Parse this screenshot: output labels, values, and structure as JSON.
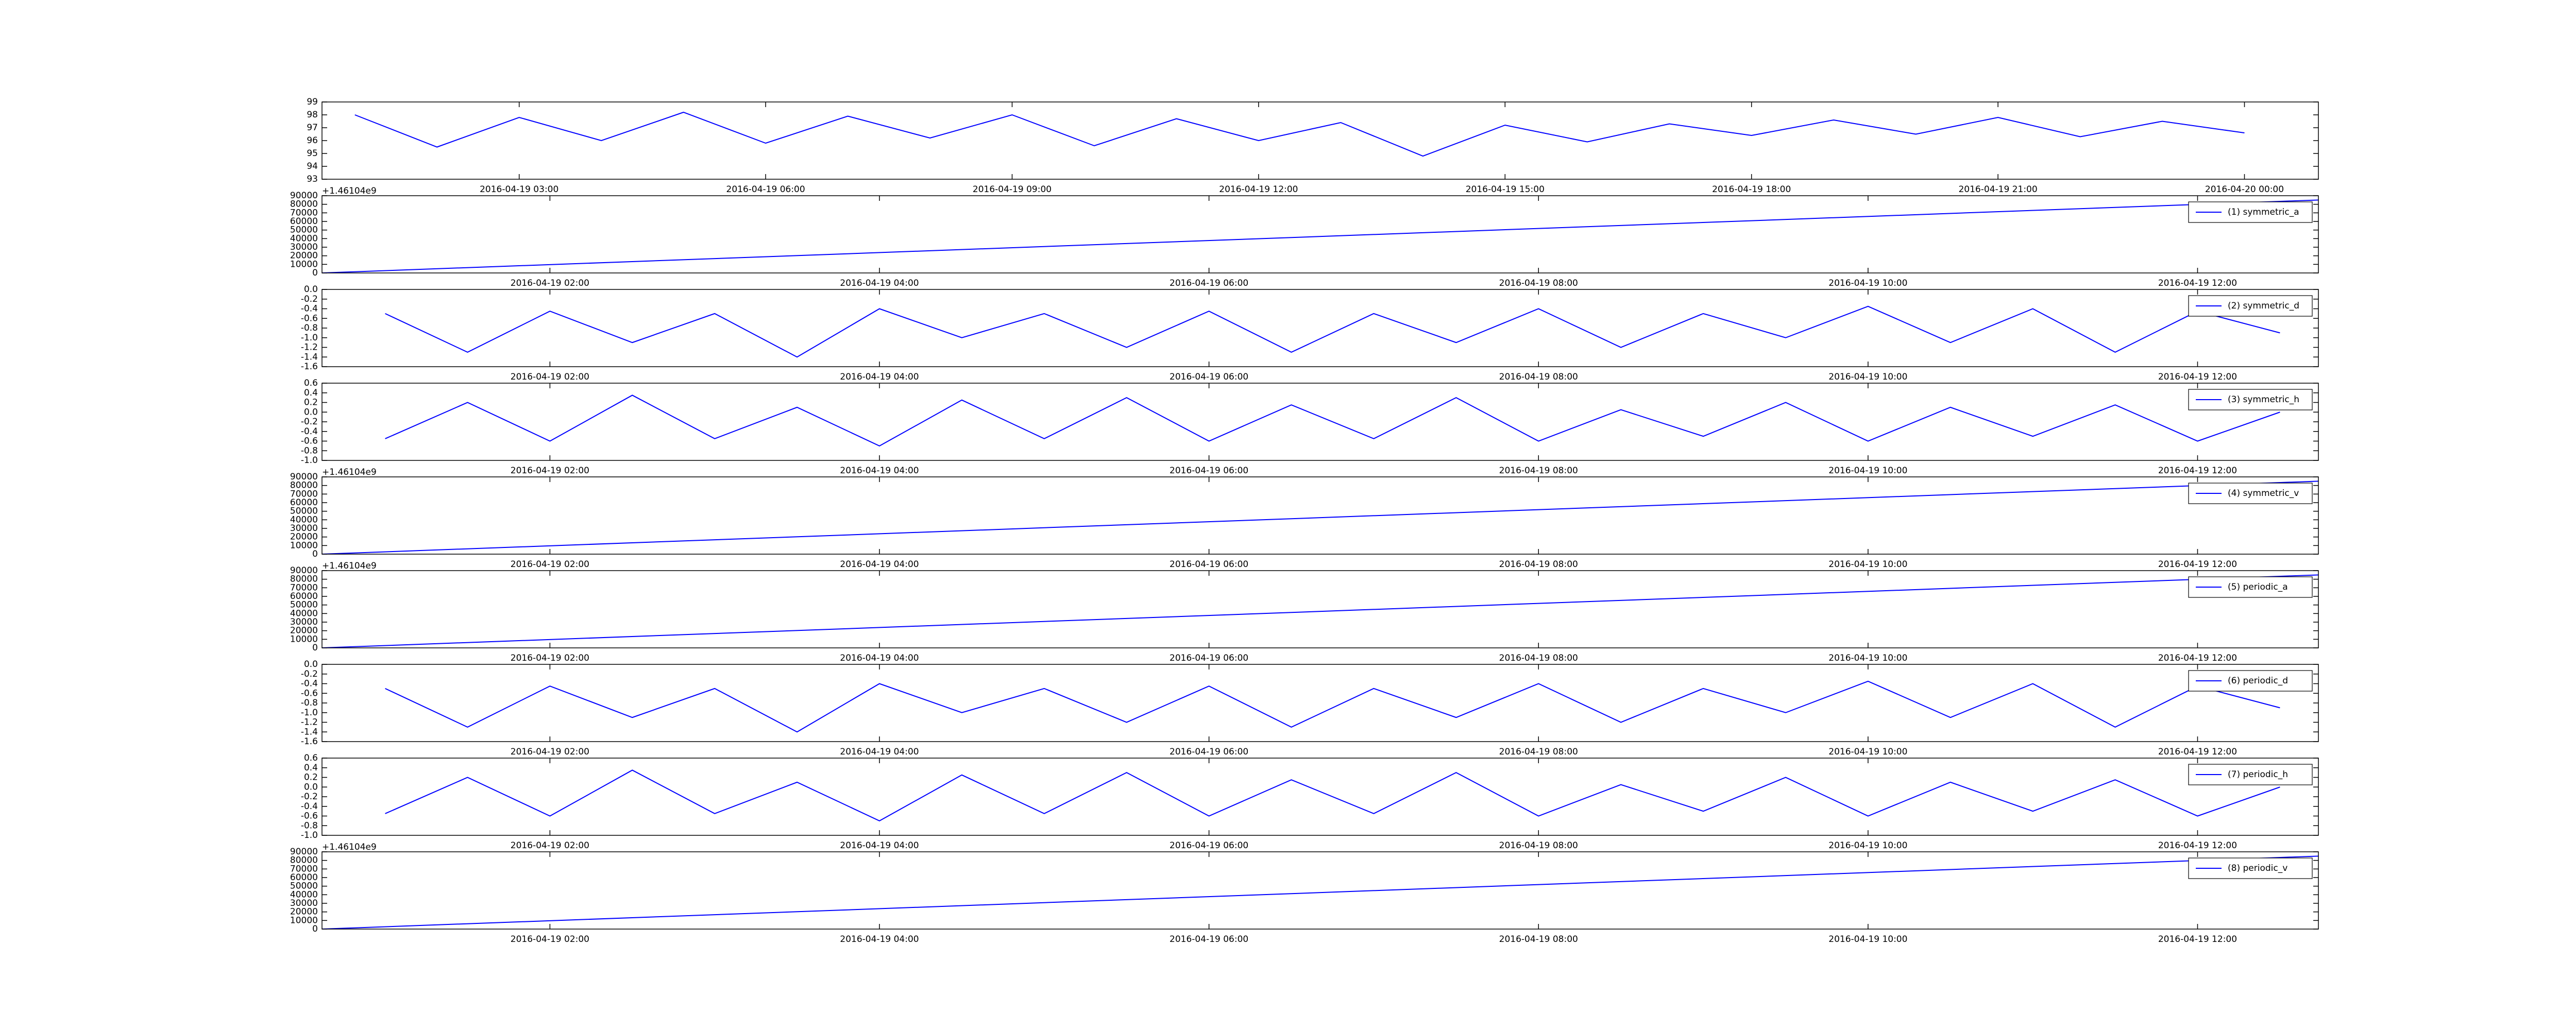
{
  "chart_data": [
    {
      "type": "line",
      "x": [
        "2016-04-19 01:00",
        "2016-04-19 02:00",
        "2016-04-19 03:00",
        "2016-04-19 04:00",
        "2016-04-19 05:00",
        "2016-04-19 06:00",
        "2016-04-19 07:00",
        "2016-04-19 08:00",
        "2016-04-19 09:00",
        "2016-04-19 10:00",
        "2016-04-19 11:00",
        "2016-04-19 12:00",
        "2016-04-19 13:00",
        "2016-04-19 14:00",
        "2016-04-19 15:00",
        "2016-04-19 16:00",
        "2016-04-19 17:00",
        "2016-04-19 18:00",
        "2016-04-19 19:00",
        "2016-04-19 20:00",
        "2016-04-19 21:00",
        "2016-04-19 22:00",
        "2016-04-19 23:00",
        "2016-04-20 00:00"
      ],
      "series": [
        {
          "color": "#0000ff",
          "values": [
            98,
            95.5,
            97.8,
            96,
            98.2,
            95.8,
            97.9,
            96.2,
            98,
            95.6,
            97.7,
            96,
            97.4,
            94.8,
            97.2,
            95.9,
            97.3,
            96.4,
            97.6,
            96.5,
            97.8,
            96.3,
            97.5,
            96.6
          ]
        }
      ],
      "xlim": [
        "2016-04-19 00:36",
        "2016-04-20 00:54"
      ],
      "xticks": [
        "2016-04-19 03:00",
        "2016-04-19 06:00",
        "2016-04-19 09:00",
        "2016-04-19 12:00",
        "2016-04-19 15:00",
        "2016-04-19 18:00",
        "2016-04-19 21:00",
        "2016-04-20 00:00"
      ],
      "ylim": [
        93,
        99
      ],
      "yticks": [
        93,
        94,
        95,
        96,
        97,
        98,
        99
      ]
    },
    {
      "type": "line",
      "annotation": "+1.46104e9",
      "legend": "upper right",
      "x": [
        "2016-04-19 00:37",
        "2016-04-19 12:44"
      ],
      "series": [
        {
          "name": "(1) symmetric_a",
          "color": "#0000ff",
          "values": [
            0,
            85000
          ]
        }
      ],
      "xlim": [
        "2016-04-19 00:37",
        "2016-04-19 12:44"
      ],
      "xticks": [
        "2016-04-19 02:00",
        "2016-04-19 04:00",
        "2016-04-19 06:00",
        "2016-04-19 08:00",
        "2016-04-19 10:00",
        "2016-04-19 12:00"
      ],
      "ylim": [
        0,
        90000
      ],
      "yticks": [
        0,
        10000,
        20000,
        30000,
        40000,
        50000,
        60000,
        70000,
        80000,
        90000
      ]
    },
    {
      "type": "line",
      "legend": "upper right",
      "x": [
        "2016-04-19 01:00",
        "2016-04-19 01:30",
        "2016-04-19 02:00",
        "2016-04-19 02:30",
        "2016-04-19 03:00",
        "2016-04-19 03:30",
        "2016-04-19 04:00",
        "2016-04-19 04:30",
        "2016-04-19 05:00",
        "2016-04-19 05:30",
        "2016-04-19 06:00",
        "2016-04-19 06:30",
        "2016-04-19 07:00",
        "2016-04-19 07:30",
        "2016-04-19 08:00",
        "2016-04-19 08:30",
        "2016-04-19 09:00",
        "2016-04-19 09:30",
        "2016-04-19 10:00",
        "2016-04-19 10:30",
        "2016-04-19 11:00",
        "2016-04-19 11:30",
        "2016-04-19 12:00",
        "2016-04-19 12:30"
      ],
      "series": [
        {
          "name": "(2) symmetric_d",
          "color": "#0000ff",
          "values": [
            -0.5,
            -1.3,
            -0.45,
            -1.1,
            -0.5,
            -1.4,
            -0.4,
            -1.0,
            -0.5,
            -1.2,
            -0.45,
            -1.3,
            -0.5,
            -1.1,
            -0.4,
            -1.2,
            -0.5,
            -1.0,
            -0.35,
            -1.1,
            -0.4,
            -1.3,
            -0.45,
            -0.9
          ]
        }
      ],
      "xlim": [
        "2016-04-19 00:37",
        "2016-04-19 12:44"
      ],
      "xticks": [
        "2016-04-19 02:00",
        "2016-04-19 04:00",
        "2016-04-19 06:00",
        "2016-04-19 08:00",
        "2016-04-19 10:00",
        "2016-04-19 12:00"
      ],
      "ylim": [
        -1.6,
        0
      ],
      "yticks": [
        -1.6,
        -1.4,
        -1.2,
        {
          "value": -1,
          "label": "-1.0"
        },
        -0.8,
        -0.6,
        -0.4,
        -0.2,
        {
          "value": 0,
          "label": "0.0"
        }
      ]
    },
    {
      "type": "line",
      "legend": "upper right",
      "x": [
        "2016-04-19 01:00",
        "2016-04-19 01:30",
        "2016-04-19 02:00",
        "2016-04-19 02:30",
        "2016-04-19 03:00",
        "2016-04-19 03:30",
        "2016-04-19 04:00",
        "2016-04-19 04:30",
        "2016-04-19 05:00",
        "2016-04-19 05:30",
        "2016-04-19 06:00",
        "2016-04-19 06:30",
        "2016-04-19 07:00",
        "2016-04-19 07:30",
        "2016-04-19 08:00",
        "2016-04-19 08:30",
        "2016-04-19 09:00",
        "2016-04-19 09:30",
        "2016-04-19 10:00",
        "2016-04-19 10:30",
        "2016-04-19 11:00",
        "2016-04-19 11:30",
        "2016-04-19 12:00",
        "2016-04-19 12:30"
      ],
      "series": [
        {
          "name": "(3) symmetric_h",
          "color": "#0000ff",
          "values": [
            -0.55,
            0.2,
            -0.6,
            0.35,
            -0.55,
            0.1,
            -0.7,
            0.25,
            -0.55,
            0.3,
            -0.6,
            0.15,
            -0.55,
            0.3,
            -0.6,
            0.05,
            -0.5,
            0.2,
            -0.6,
            0.1,
            -0.5,
            0.15,
            -0.6,
            0
          ]
        }
      ],
      "xlim": [
        "2016-04-19 00:37",
        "2016-04-19 12:44"
      ],
      "xticks": [
        "2016-04-19 02:00",
        "2016-04-19 04:00",
        "2016-04-19 06:00",
        "2016-04-19 08:00",
        "2016-04-19 10:00",
        "2016-04-19 12:00"
      ],
      "ylim": [
        -1,
        0.6
      ],
      "yticks": [
        {
          "value": -1,
          "label": "-1.0"
        },
        -0.8,
        -0.6,
        -0.4,
        -0.2,
        {
          "value": 0,
          "label": "0.0"
        },
        0.2,
        0.4,
        0.6
      ]
    },
    {
      "type": "line",
      "annotation": "+1.46104e9",
      "legend": "upper right",
      "x": [
        "2016-04-19 00:37",
        "2016-04-19 12:44"
      ],
      "series": [
        {
          "name": "(4) symmetric_v",
          "color": "#0000ff",
          "values": [
            0,
            85000
          ]
        }
      ],
      "xlim": [
        "2016-04-19 00:37",
        "2016-04-19 12:44"
      ],
      "xticks": [
        "2016-04-19 02:00",
        "2016-04-19 04:00",
        "2016-04-19 06:00",
        "2016-04-19 08:00",
        "2016-04-19 10:00",
        "2016-04-19 12:00"
      ],
      "ylim": [
        0,
        90000
      ],
      "yticks": [
        0,
        10000,
        20000,
        30000,
        40000,
        50000,
        60000,
        70000,
        80000,
        90000
      ]
    },
    {
      "type": "line",
      "annotation": "+1.46104e9",
      "legend": "upper right",
      "x": [
        "2016-04-19 00:37",
        "2016-04-19 12:44"
      ],
      "series": [
        {
          "name": "(5) periodic_a",
          "color": "#0000ff",
          "values": [
            0,
            85000
          ]
        }
      ],
      "xlim": [
        "2016-04-19 00:37",
        "2016-04-19 12:44"
      ],
      "xticks": [
        "2016-04-19 02:00",
        "2016-04-19 04:00",
        "2016-04-19 06:00",
        "2016-04-19 08:00",
        "2016-04-19 10:00",
        "2016-04-19 12:00"
      ],
      "ylim": [
        0,
        90000
      ],
      "yticks": [
        0,
        10000,
        20000,
        30000,
        40000,
        50000,
        60000,
        70000,
        80000,
        90000
      ]
    },
    {
      "type": "line",
      "legend": "upper right",
      "x": [
        "2016-04-19 01:00",
        "2016-04-19 01:30",
        "2016-04-19 02:00",
        "2016-04-19 02:30",
        "2016-04-19 03:00",
        "2016-04-19 03:30",
        "2016-04-19 04:00",
        "2016-04-19 04:30",
        "2016-04-19 05:00",
        "2016-04-19 05:30",
        "2016-04-19 06:00",
        "2016-04-19 06:30",
        "2016-04-19 07:00",
        "2016-04-19 07:30",
        "2016-04-19 08:00",
        "2016-04-19 08:30",
        "2016-04-19 09:00",
        "2016-04-19 09:30",
        "2016-04-19 10:00",
        "2016-04-19 10:30",
        "2016-04-19 11:00",
        "2016-04-19 11:30",
        "2016-04-19 12:00",
        "2016-04-19 12:30"
      ],
      "series": [
        {
          "name": "(6) periodic_d",
          "color": "#0000ff",
          "values": [
            -0.5,
            -1.3,
            -0.45,
            -1.1,
            -0.5,
            -1.4,
            -0.4,
            -1.0,
            -0.5,
            -1.2,
            -0.45,
            -1.3,
            -0.5,
            -1.1,
            -0.4,
            -1.2,
            -0.5,
            -1.0,
            -0.35,
            -1.1,
            -0.4,
            -1.3,
            -0.45,
            -0.9
          ]
        }
      ],
      "xlim": [
        "2016-04-19 00:37",
        "2016-04-19 12:44"
      ],
      "xticks": [
        "2016-04-19 02:00",
        "2016-04-19 04:00",
        "2016-04-19 06:00",
        "2016-04-19 08:00",
        "2016-04-19 10:00",
        "2016-04-19 12:00"
      ],
      "ylim": [
        -1.6,
        0
      ],
      "yticks": [
        -1.6,
        -1.4,
        -1.2,
        {
          "value": -1,
          "label": "-1.0"
        },
        -0.8,
        -0.6,
        -0.4,
        -0.2,
        {
          "value": 0,
          "label": "0.0"
        }
      ]
    },
    {
      "type": "line",
      "legend": "upper right",
      "x": [
        "2016-04-19 01:00",
        "2016-04-19 01:30",
        "2016-04-19 02:00",
        "2016-04-19 02:30",
        "2016-04-19 03:00",
        "2016-04-19 03:30",
        "2016-04-19 04:00",
        "2016-04-19 04:30",
        "2016-04-19 05:00",
        "2016-04-19 05:30",
        "2016-04-19 06:00",
        "2016-04-19 06:30",
        "2016-04-19 07:00",
        "2016-04-19 07:30",
        "2016-04-19 08:00",
        "2016-04-19 08:30",
        "2016-04-19 09:00",
        "2016-04-19 09:30",
        "2016-04-19 10:00",
        "2016-04-19 10:30",
        "2016-04-19 11:00",
        "2016-04-19 11:30",
        "2016-04-19 12:00",
        "2016-04-19 12:30"
      ],
      "series": [
        {
          "name": "(7) periodic_h",
          "color": "#0000ff",
          "values": [
            -0.55,
            0.2,
            -0.6,
            0.35,
            -0.55,
            0.1,
            -0.7,
            0.25,
            -0.55,
            0.3,
            -0.6,
            0.15,
            -0.55,
            0.3,
            -0.6,
            0.05,
            -0.5,
            0.2,
            -0.6,
            0.1,
            -0.5,
            0.15,
            -0.6,
            0
          ]
        }
      ],
      "xlim": [
        "2016-04-19 00:37",
        "2016-04-19 12:44"
      ],
      "xticks": [
        "2016-04-19 02:00",
        "2016-04-19 04:00",
        "2016-04-19 06:00",
        "2016-04-19 08:00",
        "2016-04-19 10:00",
        "2016-04-19 12:00"
      ],
      "ylim": [
        -1,
        0.6
      ],
      "yticks": [
        {
          "value": -1,
          "label": "-1.0"
        },
        -0.8,
        -0.6,
        -0.4,
        -0.2,
        {
          "value": 0,
          "label": "0.0"
        },
        0.2,
        0.4,
        0.6
      ]
    },
    {
      "type": "line",
      "annotation": "+1.46104e9",
      "legend": "upper right",
      "x": [
        "2016-04-19 00:37",
        "2016-04-19 12:44"
      ],
      "series": [
        {
          "name": "(8) periodic_v",
          "color": "#0000ff",
          "values": [
            0,
            85000
          ]
        }
      ],
      "xlim": [
        "2016-04-19 00:37",
        "2016-04-19 12:44"
      ],
      "xticks": [
        "2016-04-19 02:00",
        "2016-04-19 04:00",
        "2016-04-19 06:00",
        "2016-04-19 08:00",
        "2016-04-19 10:00",
        "2016-04-19 12:00"
      ],
      "ylim": [
        0,
        90000
      ],
      "yticks": [
        0,
        10000,
        20000,
        30000,
        40000,
        50000,
        60000,
        70000,
        80000,
        90000
      ]
    }
  ]
}
